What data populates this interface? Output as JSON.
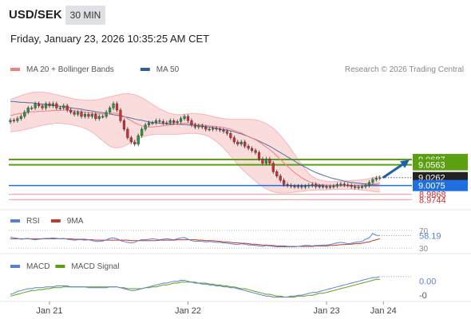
{
  "header": {
    "symbol": "USD/SEK",
    "timeframe": "30 MIN",
    "datetime": "Friday, January 23, 2026 10:35:25 AM CET"
  },
  "colors": {
    "candle_up": "#1a9e3a",
    "candle_down": "#d92b2b",
    "bollinger_fill": "#fbd8d8",
    "ma20": "#f08080",
    "ma50": "#4a6fa5",
    "resistance": "#5aa010",
    "pivot": "#1f6fe0",
    "support": "#f0a0a0",
    "current_price": "#222222",
    "rsi": "#5b7fd0",
    "rsi_ma": "#c0392b",
    "macd": "#5b7fd0",
    "macd_signal": "#5aa010",
    "arrow": "#1f5fa8"
  },
  "chart_data": [
    {
      "type": "candlestick",
      "panel": "price",
      "legend": [
        {
          "name": "MA 20 + Bollinger Bands",
          "color": "#f08080"
        },
        {
          "name": "MA 50",
          "color": "#2e5f9e"
        }
      ],
      "attribution": "Research © 2026 Trading Central",
      "ylim": [
        8.96,
        9.26
      ],
      "x_ticks": [
        "Jan 21",
        "Jan 22",
        "Jan 23",
        "Jan 24"
      ],
      "close": [
        9.161,
        9.16,
        9.165,
        9.17,
        9.18,
        9.19,
        9.19,
        9.2,
        9.195,
        9.19,
        9.2,
        9.195,
        9.2,
        9.19,
        9.19,
        9.195,
        9.185,
        9.18,
        9.175,
        9.18,
        9.17,
        9.175,
        9.17,
        9.175,
        9.165,
        9.17,
        9.17,
        9.18,
        9.19,
        9.2,
        9.185,
        9.16,
        9.14,
        9.12,
        9.11,
        9.105,
        9.125,
        9.14,
        9.15,
        9.155,
        9.155,
        9.16,
        9.158,
        9.155,
        9.155,
        9.16,
        9.155,
        9.158,
        9.165,
        9.17,
        9.16,
        9.15,
        9.145,
        9.148,
        9.145,
        9.14,
        9.14,
        9.142,
        9.14,
        9.138,
        9.135,
        9.13,
        9.12,
        9.11,
        9.105,
        9.11,
        9.1,
        9.095,
        9.09,
        9.085,
        9.07,
        9.06,
        9.07,
        9.06,
        9.04,
        9.03,
        9.02,
        9.01,
        9.008,
        9.006,
        9.005,
        9.006,
        9.004,
        9.006,
        9.008,
        9.01,
        9.005,
        9.006,
        9.005,
        9.004,
        9.005,
        9.006,
        9.01,
        9.011,
        9.009,
        9.008,
        9.005,
        9.003,
        9.004,
        9.005,
        9.008,
        9.015,
        9.022,
        9.025,
        9.026
      ],
      "ma20": [
        9.172,
        9.174,
        9.176,
        9.177,
        9.178,
        9.18,
        9.181,
        9.181,
        9.182,
        9.182,
        9.183,
        9.183,
        9.184,
        9.184,
        9.184,
        9.185,
        9.185,
        9.184,
        9.183,
        9.182,
        9.181,
        9.18,
        9.179,
        9.178,
        9.177,
        9.176,
        9.176,
        9.176,
        9.177,
        9.178,
        9.177,
        9.174,
        9.17,
        9.165,
        9.16,
        9.155,
        9.151,
        9.148,
        9.146,
        9.145,
        9.145,
        9.146,
        9.147,
        9.148,
        9.149,
        9.15,
        9.151,
        9.152,
        9.153,
        9.154,
        9.154,
        9.153,
        9.152,
        9.151,
        9.15,
        9.149,
        9.148,
        9.147,
        9.146,
        9.145,
        9.144,
        9.142,
        9.14,
        9.137,
        9.134,
        9.131,
        9.127,
        9.123,
        9.119,
        9.115,
        9.11,
        9.104,
        9.098,
        9.092,
        9.085,
        9.077,
        9.069,
        9.061,
        9.053,
        9.045,
        9.038,
        9.032,
        9.026,
        9.021,
        9.017,
        9.014,
        9.012,
        9.01,
        9.009,
        9.008,
        9.007,
        9.007,
        9.007,
        9.007,
        9.007,
        9.007,
        9.007,
        9.007,
        9.007,
        9.008,
        9.009,
        9.01,
        9.011,
        9.012,
        9.013
      ],
      "bb_upper": [
        9.21,
        9.213,
        9.216,
        9.219,
        9.222,
        9.224,
        9.226,
        9.227,
        9.227,
        9.227,
        9.226,
        9.225,
        9.223,
        9.221,
        9.219,
        9.217,
        9.215,
        9.213,
        9.211,
        9.21,
        9.209,
        9.208,
        9.208,
        9.208,
        9.209,
        9.21,
        9.212,
        9.214,
        9.216,
        9.218,
        9.22,
        9.222,
        9.223,
        9.224,
        9.223,
        9.221,
        9.218,
        9.214,
        9.209,
        9.204,
        9.198,
        9.193,
        9.188,
        9.184,
        9.18,
        9.177,
        9.175,
        9.174,
        9.174,
        9.175,
        9.176,
        9.177,
        9.177,
        9.176,
        9.175,
        9.174,
        9.172,
        9.17,
        9.168,
        9.166,
        9.165,
        9.164,
        9.163,
        9.163,
        9.163,
        9.163,
        9.163,
        9.163,
        9.163,
        9.162,
        9.16,
        9.157,
        9.153,
        9.148,
        9.142,
        9.134,
        9.125,
        9.115,
        9.105,
        9.093,
        9.081,
        9.069,
        9.057,
        9.046,
        9.036,
        9.029,
        9.024,
        9.021,
        9.019,
        9.018,
        9.017,
        9.017,
        9.017,
        9.018,
        9.018,
        9.019,
        9.019,
        9.02,
        9.02,
        9.021,
        9.022,
        9.024,
        9.026,
        9.028,
        9.03
      ],
      "bb_lower": [
        9.134,
        9.135,
        9.136,
        9.137,
        9.139,
        9.141,
        9.143,
        9.145,
        9.147,
        9.149,
        9.151,
        9.152,
        9.153,
        9.154,
        9.154,
        9.153,
        9.152,
        9.151,
        9.149,
        9.147,
        9.145,
        9.142,
        9.138,
        9.133,
        9.127,
        9.12,
        9.113,
        9.106,
        9.1,
        9.097,
        9.096,
        9.097,
        9.1,
        9.104,
        9.109,
        9.113,
        9.117,
        9.121,
        9.124,
        9.126,
        9.127,
        9.128,
        9.128,
        9.128,
        9.128,
        9.128,
        9.128,
        9.128,
        9.129,
        9.129,
        9.13,
        9.13,
        9.13,
        9.129,
        9.128,
        9.126,
        9.122,
        9.117,
        9.111,
        9.104,
        9.096,
        9.087,
        9.077,
        9.067,
        9.057,
        9.048,
        9.04,
        9.032,
        9.025,
        9.018,
        9.011,
        9.005,
        9.0,
        8.996,
        8.993,
        8.991,
        8.99,
        8.99,
        8.99,
        8.991,
        8.992,
        8.993,
        8.994,
        8.995,
        8.996,
        8.996,
        8.997,
        8.997,
        8.997,
        8.998,
        8.998,
        8.998,
        8.998,
        8.999,
        8.999,
        8.999,
        8.999,
        8.999,
        8.998,
        8.997,
        8.996,
        8.995,
        8.994,
        8.993,
        8.992
      ],
      "ma50": [
        9.205,
        9.205,
        9.204,
        9.203,
        9.203,
        9.202,
        9.202,
        9.201,
        9.2,
        9.199,
        9.198,
        9.197,
        9.196,
        9.195,
        9.194,
        9.193,
        9.192,
        9.19,
        9.189,
        9.188,
        9.187,
        9.185,
        9.184,
        9.183,
        9.181,
        9.18,
        9.179,
        9.177,
        9.176,
        9.174,
        9.173,
        9.171,
        9.169,
        9.168,
        9.166,
        9.164,
        9.162,
        9.161,
        9.159,
        9.157,
        9.156,
        9.155,
        9.154,
        9.153,
        9.153,
        9.152,
        9.152,
        9.152,
        9.151,
        9.151,
        9.15,
        9.15,
        9.149,
        9.148,
        9.147,
        9.146,
        9.145,
        9.144,
        9.142,
        9.141,
        9.139,
        9.138,
        9.136,
        9.134,
        9.131,
        9.129,
        9.126,
        9.123,
        9.119,
        9.116,
        9.112,
        9.108,
        9.104,
        9.1,
        9.095,
        9.09,
        9.085,
        9.08,
        9.075,
        9.07,
        9.065,
        9.06,
        9.055,
        9.051,
        9.046,
        9.042,
        9.038,
        9.035,
        9.032,
        9.029,
        9.026,
        9.024,
        9.022,
        9.02,
        9.018,
        9.016,
        9.015,
        9.014,
        9.013,
        9.012,
        9.011,
        9.01,
        9.009,
        9.009,
        9.008
      ],
      "levels": [
        {
          "label": "9.0687",
          "value": 9.0687,
          "kind": "resistance",
          "boxed": true
        },
        {
          "label": "9.0563",
          "value": 9.0563,
          "kind": "resistance",
          "boxed": true
        },
        {
          "label": "9.0262",
          "value": 9.0262,
          "kind": "current",
          "boxed": true
        },
        {
          "label": "9.0075",
          "value": 9.0075,
          "kind": "pivot",
          "boxed": true
        },
        {
          "label": "8.9868",
          "value": 8.9868,
          "kind": "support",
          "boxed": false
        },
        {
          "label": "8.9744",
          "value": 8.9744,
          "kind": "support",
          "boxed": false
        }
      ],
      "arrow": {
        "from": 9.026,
        "to": 9.068
      }
    },
    {
      "type": "line",
      "panel": "rsi",
      "legend": [
        {
          "name": "RSI",
          "color": "#5b7fd0"
        },
        {
          "name": "9MA",
          "color": "#c0392b"
        }
      ],
      "ylim": [
        25,
        75
      ],
      "ticks": [
        {
          "label": "70",
          "value": 70
        },
        {
          "label": "30",
          "value": 30
        }
      ],
      "last_value_label": "58.19",
      "rsi": [
        55,
        53,
        52,
        50,
        51,
        52,
        50,
        49,
        50,
        51,
        52,
        52,
        53,
        52,
        51,
        52,
        50,
        49,
        48,
        49,
        49,
        48,
        49,
        47,
        45,
        45,
        46,
        49,
        52,
        53,
        51,
        47,
        45,
        43,
        42,
        43,
        47,
        49,
        49,
        50,
        51,
        50,
        49,
        50,
        51,
        50,
        49,
        51,
        53,
        54,
        50,
        47,
        45,
        46,
        45,
        44,
        45,
        44,
        43,
        43,
        42,
        41,
        40,
        39,
        38,
        40,
        39,
        37,
        37,
        36,
        35,
        34,
        36,
        35,
        34,
        33,
        33,
        33,
        33,
        33,
        33,
        34,
        35,
        36,
        36,
        35,
        36,
        36,
        37,
        37,
        38,
        40,
        42,
        43,
        42,
        40,
        41,
        43,
        44,
        45,
        50,
        53,
        63,
        59,
        58
      ],
      "ma9": [
        51,
        51,
        51,
        51,
        51,
        51,
        51,
        51,
        51,
        51,
        51,
        51,
        51,
        51,
        51,
        51,
        51,
        51,
        50,
        50,
        50,
        50,
        49,
        49,
        48,
        48,
        48,
        48,
        48,
        48,
        48,
        48,
        48,
        48,
        47,
        47,
        47,
        47,
        47,
        47,
        47,
        47,
        48,
        48,
        48,
        48,
        48,
        49,
        49,
        49,
        49,
        49,
        49,
        48,
        48,
        47,
        47,
        47,
        46,
        45,
        44,
        44,
        43,
        42,
        42,
        41,
        41,
        40,
        39,
        39,
        38,
        37,
        37,
        36,
        36,
        35,
        35,
        35,
        34,
        34,
        34,
        34,
        34,
        34,
        34,
        34,
        35,
        35,
        35,
        35,
        36,
        36,
        37,
        38,
        38,
        39,
        39,
        40,
        40,
        41,
        43,
        44,
        47,
        49,
        51
      ]
    },
    {
      "type": "line",
      "panel": "macd",
      "legend": [
        {
          "name": "MACD",
          "color": "#5b7fd0"
        },
        {
          "name": "MACD Signal",
          "color": "#5aa010"
        }
      ],
      "ylim": [
        -0.02,
        0.01
      ],
      "ticks": [
        {
          "label": "0.00",
          "value": 0.0
        },
        {
          "label": "-0",
          "value": -0.015
        }
      ],
      "macd": [
        -0.014,
        -0.013,
        -0.011,
        -0.01,
        -0.009,
        -0.008,
        -0.008,
        -0.007,
        -0.007,
        -0.007,
        -0.006,
        -0.006,
        -0.006,
        -0.005,
        -0.005,
        -0.005,
        -0.005,
        -0.006,
        -0.006,
        -0.006,
        -0.006,
        -0.006,
        -0.007,
        -0.007,
        -0.007,
        -0.007,
        -0.007,
        -0.007,
        -0.006,
        -0.006,
        -0.006,
        -0.007,
        -0.008,
        -0.009,
        -0.01,
        -0.01,
        -0.009,
        -0.008,
        -0.007,
        -0.006,
        -0.005,
        -0.004,
        -0.003,
        -0.002,
        -0.002,
        -0.001,
        0.0,
        0.0,
        0.001,
        0.001,
        0.0,
        -0.001,
        -0.002,
        -0.002,
        -0.003,
        -0.003,
        -0.004,
        -0.004,
        -0.005,
        -0.005,
        -0.006,
        -0.006,
        -0.007,
        -0.007,
        -0.008,
        -0.009,
        -0.01,
        -0.011,
        -0.012,
        -0.013,
        -0.014,
        -0.015,
        -0.016,
        -0.016,
        -0.017,
        -0.017,
        -0.017,
        -0.017,
        -0.017,
        -0.016,
        -0.016,
        -0.015,
        -0.015,
        -0.014,
        -0.013,
        -0.012,
        -0.012,
        -0.011,
        -0.01,
        -0.009,
        -0.008,
        -0.007,
        -0.006,
        -0.005,
        -0.004,
        -0.003,
        -0.002,
        -0.001,
        0.0,
        0.001,
        0.002,
        0.003,
        0.004,
        0.004,
        0.005
      ],
      "signal": [
        -0.016,
        -0.015,
        -0.014,
        -0.013,
        -0.012,
        -0.011,
        -0.01,
        -0.01,
        -0.009,
        -0.009,
        -0.008,
        -0.008,
        -0.007,
        -0.007,
        -0.007,
        -0.006,
        -0.006,
        -0.006,
        -0.006,
        -0.006,
        -0.006,
        -0.006,
        -0.006,
        -0.006,
        -0.006,
        -0.006,
        -0.006,
        -0.006,
        -0.006,
        -0.006,
        -0.006,
        -0.007,
        -0.007,
        -0.008,
        -0.008,
        -0.008,
        -0.008,
        -0.008,
        -0.007,
        -0.007,
        -0.006,
        -0.006,
        -0.005,
        -0.004,
        -0.004,
        -0.003,
        -0.002,
        -0.002,
        -0.001,
        -0.001,
        -0.001,
        -0.001,
        -0.001,
        -0.002,
        -0.002,
        -0.002,
        -0.003,
        -0.003,
        -0.004,
        -0.004,
        -0.005,
        -0.005,
        -0.006,
        -0.006,
        -0.007,
        -0.008,
        -0.008,
        -0.009,
        -0.01,
        -0.011,
        -0.012,
        -0.013,
        -0.014,
        -0.014,
        -0.015,
        -0.016,
        -0.016,
        -0.017,
        -0.017,
        -0.017,
        -0.017,
        -0.016,
        -0.016,
        -0.016,
        -0.015,
        -0.015,
        -0.014,
        -0.013,
        -0.013,
        -0.012,
        -0.011,
        -0.01,
        -0.009,
        -0.008,
        -0.007,
        -0.006,
        -0.005,
        -0.004,
        -0.003,
        -0.002,
        -0.001,
        0.0,
        0.001,
        0.002,
        0.002
      ]
    }
  ]
}
